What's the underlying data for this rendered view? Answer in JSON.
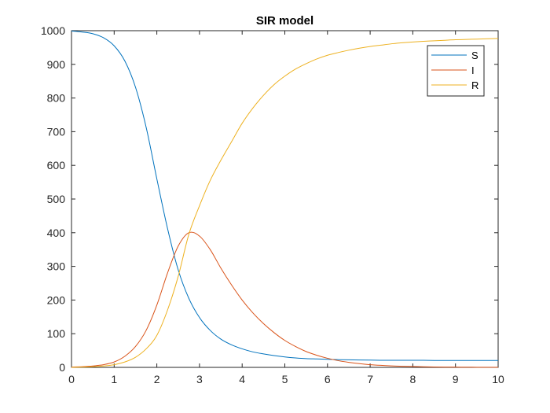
{
  "chart_data": {
    "type": "line",
    "title": "SIR model",
    "xlabel": "",
    "ylabel": "",
    "xlim": [
      0,
      10
    ],
    "ylim": [
      0,
      1000
    ],
    "xticks": [
      0,
      1,
      2,
      3,
      4,
      5,
      6,
      7,
      8,
      9,
      10
    ],
    "yticks": [
      0,
      100,
      200,
      300,
      400,
      500,
      600,
      700,
      800,
      900,
      1000
    ],
    "grid": false,
    "legend_position": "top-right",
    "x": [
      0,
      0.25,
      0.5,
      0.75,
      1,
      1.25,
      1.5,
      1.75,
      2,
      2.25,
      2.5,
      2.75,
      3,
      3.25,
      3.5,
      3.75,
      4,
      4.25,
      4.5,
      4.75,
      5,
      5.25,
      5.5,
      5.75,
      6,
      6.25,
      6.5,
      6.75,
      7,
      7.25,
      7.5,
      7.75,
      8,
      8.25,
      8.5,
      8.75,
      9,
      9.25,
      9.5,
      9.75,
      10
    ],
    "series": [
      {
        "name": "S",
        "color": "#0072BD",
        "values": [
          999,
          996,
          991,
          979,
          955,
          910,
          832,
          713,
          560,
          413,
          290,
          205,
          148,
          110,
          84,
          67,
          55,
          46,
          40,
          35,
          31,
          28,
          26,
          25,
          24,
          23,
          22.5,
          22,
          21.5,
          21,
          21,
          21,
          21,
          21,
          20.5,
          20.5,
          20.5,
          20.5,
          20.5,
          20.5,
          20.5
        ]
      },
      {
        "name": "I",
        "color": "#D95319",
        "values": [
          1,
          2,
          4,
          8,
          16,
          33,
          62,
          110,
          185,
          280,
          360,
          400,
          390,
          350,
          295,
          245,
          200,
          162,
          130,
          103,
          80,
          62,
          47,
          36,
          27,
          20,
          15,
          11,
          8,
          6,
          4.5,
          3.3,
          2.5,
          1.8,
          1.3,
          1,
          0.8,
          0.6,
          0.4,
          0.3,
          0.2
        ]
      },
      {
        "name": "R",
        "color": "#EDB120",
        "values": [
          0,
          1,
          2,
          4,
          8,
          16,
          30,
          55,
          95,
          170,
          270,
          395,
          480,
          555,
          615,
          670,
          725,
          770,
          808,
          840,
          865,
          886,
          902,
          916,
          927,
          935,
          942,
          948,
          953,
          957,
          961,
          964,
          966.5,
          968.5,
          970,
          971.5,
          973,
          974,
          975,
          976,
          977
        ]
      }
    ]
  }
}
